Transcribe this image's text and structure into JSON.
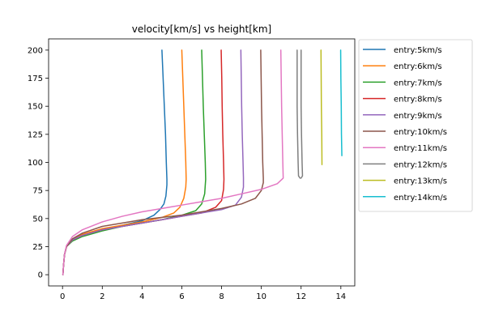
{
  "chart_data": {
    "type": "line",
    "title": "velocity[km/s] vs height[km]",
    "xlabel": "",
    "ylabel": "",
    "xlim": [
      -0.7,
      14.7
    ],
    "ylim": [
      -10,
      210
    ],
    "xticks": [
      0,
      2,
      4,
      6,
      8,
      10,
      12,
      14
    ],
    "yticks": [
      0,
      25,
      50,
      75,
      100,
      125,
      150,
      175,
      200
    ],
    "legend_position": "outside-right",
    "series": [
      {
        "name": "entry:5km/s",
        "color": "#1f77b4",
        "points": [
          [
            0.02,
            0
          ],
          [
            0.05,
            8
          ],
          [
            0.1,
            18
          ],
          [
            0.2,
            25
          ],
          [
            0.5,
            31
          ],
          [
            1.0,
            35
          ],
          [
            2.0,
            40
          ],
          [
            3.0,
            44
          ],
          [
            4.0,
            48
          ],
          [
            4.6,
            53
          ],
          [
            4.9,
            58
          ],
          [
            5.1,
            63
          ],
          [
            5.2,
            70
          ],
          [
            5.25,
            80
          ],
          [
            5.25,
            85
          ],
          [
            5.22,
            100
          ],
          [
            5.18,
            125
          ],
          [
            5.12,
            150
          ],
          [
            5.06,
            175
          ],
          [
            5.0,
            200
          ]
        ]
      },
      {
        "name": "entry:6km/s",
        "color": "#ff7f0e",
        "points": [
          [
            0.02,
            0
          ],
          [
            0.05,
            8
          ],
          [
            0.1,
            18
          ],
          [
            0.2,
            25
          ],
          [
            0.5,
            31
          ],
          [
            1.0,
            36
          ],
          [
            2.0,
            41
          ],
          [
            3.0,
            44
          ],
          [
            4.0,
            47
          ],
          [
            5.0,
            51
          ],
          [
            5.6,
            55
          ],
          [
            5.9,
            60
          ],
          [
            6.1,
            68
          ],
          [
            6.2,
            78
          ],
          [
            6.22,
            85
          ],
          [
            6.2,
            100
          ],
          [
            6.15,
            125
          ],
          [
            6.1,
            150
          ],
          [
            6.05,
            175
          ],
          [
            6.0,
            200
          ]
        ]
      },
      {
        "name": "entry:7km/s",
        "color": "#2ca02c",
        "points": [
          [
            0.02,
            0
          ],
          [
            0.05,
            8
          ],
          [
            0.1,
            18
          ],
          [
            0.2,
            25
          ],
          [
            0.5,
            30
          ],
          [
            1.0,
            34
          ],
          [
            2.0,
            39
          ],
          [
            3.0,
            43
          ],
          [
            4.0,
            46
          ],
          [
            5.0,
            49
          ],
          [
            6.0,
            53
          ],
          [
            6.7,
            57
          ],
          [
            7.0,
            63
          ],
          [
            7.15,
            72
          ],
          [
            7.2,
            85
          ],
          [
            7.18,
            100
          ],
          [
            7.13,
            125
          ],
          [
            7.08,
            150
          ],
          [
            7.04,
            175
          ],
          [
            7.0,
            200
          ]
        ]
      },
      {
        "name": "entry:8km/s",
        "color": "#d62728",
        "points": [
          [
            0.02,
            0
          ],
          [
            0.05,
            8
          ],
          [
            0.1,
            18
          ],
          [
            0.2,
            25
          ],
          [
            0.5,
            31
          ],
          [
            1.0,
            35
          ],
          [
            2.0,
            40
          ],
          [
            3.0,
            43
          ],
          [
            4.0,
            46
          ],
          [
            5.0,
            49
          ],
          [
            6.0,
            52
          ],
          [
            7.0,
            55
          ],
          [
            7.7,
            60
          ],
          [
            8.0,
            66
          ],
          [
            8.1,
            76
          ],
          [
            8.12,
            85
          ],
          [
            8.1,
            100
          ],
          [
            8.06,
            125
          ],
          [
            8.03,
            150
          ],
          [
            8.01,
            175
          ],
          [
            7.98,
            200
          ]
        ]
      },
      {
        "name": "entry:9km/s",
        "color": "#9467bd",
        "points": [
          [
            0.02,
            0
          ],
          [
            0.05,
            8
          ],
          [
            0.1,
            18
          ],
          [
            0.2,
            25
          ],
          [
            0.5,
            31
          ],
          [
            1.0,
            35
          ],
          [
            2.0,
            40
          ],
          [
            3.0,
            43
          ],
          [
            4.0,
            46
          ],
          [
            5.0,
            49
          ],
          [
            6.0,
            52
          ],
          [
            7.0,
            55
          ],
          [
            8.0,
            58
          ],
          [
            8.7,
            62
          ],
          [
            9.0,
            69
          ],
          [
            9.1,
            78
          ],
          [
            9.1,
            86
          ],
          [
            9.08,
            100
          ],
          [
            9.04,
            125
          ],
          [
            9.01,
            150
          ],
          [
            8.99,
            175
          ],
          [
            8.97,
            200
          ]
        ]
      },
      {
        "name": "entry:10km/s",
        "color": "#8c564b",
        "points": [
          [
            0.02,
            0
          ],
          [
            0.05,
            8
          ],
          [
            0.1,
            18
          ],
          [
            0.2,
            25
          ],
          [
            0.5,
            32
          ],
          [
            1.0,
            37
          ],
          [
            2.0,
            43
          ],
          [
            3.0,
            46
          ],
          [
            4.0,
            49
          ],
          [
            5.0,
            51
          ],
          [
            6.0,
            53
          ],
          [
            7.0,
            56
          ],
          [
            8.0,
            59
          ],
          [
            9.0,
            63
          ],
          [
            9.7,
            68
          ],
          [
            10.0,
            75
          ],
          [
            10.1,
            82
          ],
          [
            10.1,
            86
          ],
          [
            10.07,
            100
          ],
          [
            10.04,
            125
          ],
          [
            10.01,
            150
          ],
          [
            9.99,
            175
          ],
          [
            9.97,
            200
          ]
        ]
      },
      {
        "name": "entry:11km/s",
        "color": "#e377c2",
        "points": [
          [
            0.02,
            0
          ],
          [
            0.05,
            8
          ],
          [
            0.1,
            18
          ],
          [
            0.2,
            26
          ],
          [
            0.5,
            34
          ],
          [
            1.0,
            40
          ],
          [
            2.0,
            47
          ],
          [
            3.0,
            52
          ],
          [
            4.0,
            56
          ],
          [
            5.0,
            59
          ],
          [
            6.0,
            62
          ],
          [
            7.0,
            65
          ],
          [
            8.0,
            68
          ],
          [
            9.0,
            72
          ],
          [
            10.0,
            76
          ],
          [
            10.8,
            81
          ],
          [
            11.1,
            86
          ],
          [
            11.08,
            100
          ],
          [
            11.05,
            125
          ],
          [
            11.02,
            150
          ],
          [
            11.0,
            175
          ],
          [
            10.98,
            200
          ]
        ]
      },
      {
        "name": "entry:12km/s",
        "color": "#7f7f7f",
        "points": [
          [
            11.95,
            86
          ],
          [
            11.87,
            88
          ],
          [
            11.85,
            100
          ],
          [
            11.82,
            125
          ],
          [
            11.8,
            150
          ],
          [
            11.8,
            175
          ],
          [
            11.8,
            200
          ],
          null,
          [
            12.0,
            86
          ],
          [
            12.07,
            88
          ],
          [
            12.05,
            100
          ],
          [
            12.02,
            125
          ],
          [
            12.0,
            150
          ],
          [
            12.0,
            175
          ],
          [
            12.0,
            200
          ]
        ]
      },
      {
        "name": "entry:13km/s",
        "color": "#bcbd22",
        "points": [
          [
            13.05,
            98
          ],
          [
            13.04,
            125
          ],
          [
            13.02,
            150
          ],
          [
            13.01,
            175
          ],
          [
            13.0,
            200
          ]
        ]
      },
      {
        "name": "entry:14km/s",
        "color": "#17becf",
        "points": [
          [
            14.05,
            106
          ],
          [
            14.03,
            125
          ],
          [
            14.02,
            150
          ],
          [
            14.0,
            175
          ],
          [
            13.99,
            200
          ]
        ]
      }
    ]
  }
}
